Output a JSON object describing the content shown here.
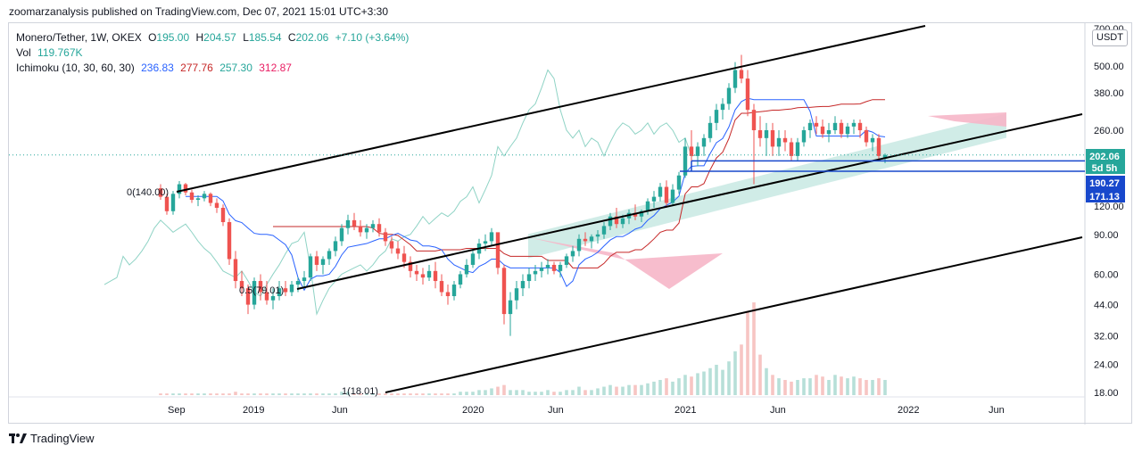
{
  "header": {
    "publisher_line": "zoomarzanalysis published on TradingView.com, Dec 07, 2021 15:01 UTC+3:30"
  },
  "legend": {
    "symbol": "Monero/Tether, 1W, OKEX",
    "o_label": "O",
    "o_value": "195.00",
    "h_label": "H",
    "h_value": "204.57",
    "l_label": "L",
    "l_value": "185.54",
    "c_label": "C",
    "c_value": "202.06",
    "change": "+7.10 (+3.64%)",
    "vol_label": "Vol",
    "vol_value": "119.767K",
    "ichimoku_label": "Ichimoku (10, 30, 60, 30)",
    "ichimoku_values": [
      "236.83",
      "277.76",
      "257.30",
      "312.87"
    ]
  },
  "colors": {
    "up": "#26a69a",
    "down": "#ef5350",
    "vol_up": "#b7dfd8",
    "vol_down": "#f7c5c3",
    "conversion": "#2962ff",
    "base": "#c62828",
    "lagging": "#8fd3c5",
    "cloud_up": "#a9dcd4",
    "cloud_down": "#f6b6c8",
    "channel": "#000000",
    "hline": "#1848cc",
    "price_tag": "#26a69a",
    "level_tag": "#1848cc"
  },
  "chart_data": {
    "type": "candlestick",
    "title": "Monero/Tether, 1W, OKEX",
    "y_scale": "log",
    "ylim": [
      16,
      700
    ],
    "x_ticks": [
      "Sep",
      "2019",
      "Jun",
      "2020",
      "Jun",
      "2021",
      "Jun",
      "2022",
      "Jun"
    ],
    "y_ticks": [
      "500.00",
      "380.00",
      "260.00",
      "120.00",
      "90.00",
      "60.00",
      "44.00",
      "32.00",
      "24.00",
      "18.00"
    ],
    "top_tick_partial": "700.00",
    "last_price": "202.06",
    "countdown": "5d 5h",
    "levels": [
      "190.27",
      "171.13"
    ],
    "annotations": [
      "0(140.00)",
      "1(18.01)",
      "0.5(79.01)"
    ],
    "ohlc_series": [
      [
        144,
        150,
        128,
        132
      ],
      [
        132,
        136,
        110,
        114
      ],
      [
        114,
        140,
        110,
        136
      ],
      [
        136,
        155,
        130,
        150
      ],
      [
        150,
        152,
        134,
        138
      ],
      [
        138,
        142,
        124,
        128
      ],
      [
        128,
        134,
        120,
        130
      ],
      [
        130,
        140,
        126,
        136
      ],
      [
        136,
        138,
        120,
        124
      ],
      [
        124,
        130,
        112,
        118
      ],
      [
        118,
        122,
        98,
        102
      ],
      [
        102,
        106,
        66,
        70
      ],
      [
        70,
        76,
        52,
        56
      ],
      [
        56,
        62,
        48,
        52
      ],
      [
        52,
        54,
        40,
        44
      ],
      [
        44,
        58,
        42,
        56
      ],
      [
        56,
        60,
        46,
        50
      ],
      [
        50,
        56,
        44,
        46
      ],
      [
        46,
        52,
        42,
        48
      ],
      [
        48,
        56,
        46,
        52
      ],
      [
        52,
        56,
        48,
        50
      ],
      [
        50,
        56,
        48,
        54
      ],
      [
        54,
        58,
        50,
        56
      ],
      [
        56,
        62,
        52,
        58
      ],
      [
        58,
        74,
        56,
        72
      ],
      [
        72,
        76,
        62,
        66
      ],
      [
        66,
        72,
        60,
        70
      ],
      [
        70,
        78,
        66,
        76
      ],
      [
        76,
        88,
        72,
        84
      ],
      [
        84,
        100,
        80,
        96
      ],
      [
        96,
        110,
        90,
        104
      ],
      [
        104,
        112,
        94,
        98
      ],
      [
        98,
        104,
        88,
        92
      ],
      [
        92,
        100,
        86,
        96
      ],
      [
        96,
        104,
        92,
        100
      ],
      [
        100,
        106,
        88,
        92
      ],
      [
        92,
        96,
        80,
        84
      ],
      [
        84,
        88,
        74,
        78
      ],
      [
        78,
        84,
        70,
        74
      ],
      [
        74,
        80,
        64,
        68
      ],
      [
        68,
        72,
        58,
        62
      ],
      [
        62,
        66,
        56,
        60
      ],
      [
        60,
        64,
        54,
        58
      ],
      [
        58,
        66,
        56,
        62
      ],
      [
        62,
        68,
        52,
        56
      ],
      [
        56,
        60,
        48,
        50
      ],
      [
        50,
        54,
        44,
        48
      ],
      [
        48,
        56,
        46,
        54
      ],
      [
        54,
        62,
        52,
        60
      ],
      [
        60,
        70,
        58,
        66
      ],
      [
        66,
        78,
        64,
        74
      ],
      [
        74,
        86,
        70,
        82
      ],
      [
        82,
        90,
        76,
        84
      ],
      [
        84,
        96,
        80,
        92
      ],
      [
        92,
        90,
        60,
        64
      ],
      [
        64,
        66,
        36,
        40
      ],
      [
        40,
        50,
        32,
        46
      ],
      [
        46,
        56,
        42,
        52
      ],
      [
        52,
        60,
        48,
        56
      ],
      [
        56,
        64,
        52,
        60
      ],
      [
        60,
        66,
        56,
        62
      ],
      [
        62,
        68,
        58,
        64
      ],
      [
        64,
        70,
        60,
        66
      ],
      [
        66,
        68,
        60,
        62
      ],
      [
        62,
        68,
        58,
        66
      ],
      [
        66,
        74,
        64,
        72
      ],
      [
        72,
        80,
        68,
        76
      ],
      [
        76,
        90,
        72,
        86
      ],
      [
        86,
        92,
        80,
        84
      ],
      [
        84,
        90,
        78,
        88
      ],
      [
        88,
        94,
        82,
        90
      ],
      [
        90,
        102,
        86,
        98
      ],
      [
        98,
        112,
        94,
        108
      ],
      [
        108,
        118,
        96,
        100
      ],
      [
        100,
        110,
        96,
        106
      ],
      [
        106,
        116,
        100,
        112
      ],
      [
        112,
        122,
        104,
        108
      ],
      [
        108,
        116,
        102,
        114
      ],
      [
        114,
        130,
        110,
        126
      ],
      [
        126,
        140,
        118,
        132
      ],
      [
        132,
        152,
        126,
        146
      ],
      [
        146,
        156,
        118,
        124
      ],
      [
        124,
        150,
        120,
        142
      ],
      [
        142,
        170,
        136,
        164
      ],
      [
        164,
        240,
        160,
        220
      ],
      [
        220,
        260,
        190,
        200
      ],
      [
        200,
        230,
        180,
        220
      ],
      [
        220,
        250,
        200,
        240
      ],
      [
        240,
        300,
        230,
        280
      ],
      [
        280,
        340,
        260,
        320
      ],
      [
        320,
        360,
        290,
        340
      ],
      [
        340,
        420,
        320,
        400
      ],
      [
        400,
        520,
        380,
        480
      ],
      [
        480,
        560,
        420,
        440
      ],
      [
        440,
        480,
        300,
        320
      ],
      [
        320,
        340,
        150,
        260
      ],
      [
        260,
        300,
        220,
        240
      ],
      [
        240,
        280,
        200,
        260
      ],
      [
        260,
        280,
        200,
        220
      ],
      [
        220,
        260,
        200,
        240
      ],
      [
        240,
        260,
        210,
        230
      ],
      [
        230,
        240,
        190,
        200
      ],
      [
        200,
        240,
        190,
        230
      ],
      [
        230,
        270,
        220,
        260
      ],
      [
        260,
        290,
        240,
        280
      ],
      [
        280,
        300,
        250,
        270
      ],
      [
        270,
        290,
        240,
        250
      ],
      [
        250,
        280,
        230,
        260
      ],
      [
        260,
        300,
        250,
        280
      ],
      [
        280,
        290,
        240,
        250
      ],
      [
        250,
        280,
        240,
        270
      ],
      [
        270,
        290,
        250,
        280
      ],
      [
        280,
        290,
        240,
        260
      ],
      [
        260,
        270,
        220,
        230
      ],
      [
        230,
        250,
        210,
        240
      ],
      [
        240,
        250,
        190,
        200
      ],
      [
        195,
        205,
        186,
        202
      ]
    ],
    "volume_series": [
      1,
      1,
      1,
      1,
      1,
      1,
      1,
      1,
      1,
      1,
      1,
      1,
      2,
      1,
      1,
      1,
      1,
      1,
      1,
      1,
      1,
      1,
      1,
      1,
      1,
      1,
      1,
      1,
      1,
      2,
      2,
      1,
      1,
      1,
      1,
      1,
      1,
      1,
      1,
      1,
      1,
      1,
      1,
      1,
      1,
      1,
      1,
      1,
      2,
      2,
      2,
      3,
      3,
      4,
      5,
      6,
      3,
      3,
      3,
      2,
      2,
      2,
      3,
      2,
      2,
      3,
      3,
      5,
      3,
      3,
      4,
      5,
      6,
      5,
      5,
      6,
      6,
      6,
      7,
      8,
      9,
      10,
      8,
      10,
      12,
      11,
      13,
      14,
      16,
      18,
      15,
      20,
      26,
      30,
      50,
      55,
      24,
      16,
      12,
      10,
      9,
      8,
      9,
      10,
      10,
      12,
      11,
      9,
      12,
      11,
      10,
      11,
      10,
      9,
      9,
      10,
      9
    ],
    "channel_lines": [
      {
        "from": [
          "2018-08",
          140
        ],
        "to": [
          "2021-12",
          700
        ]
      },
      {
        "from": [
          "2019-03",
          50
        ],
        "to": [
          "2022-10",
          300
        ]
      },
      {
        "from": [
          "2019-10",
          18.01
        ],
        "to": [
          "2022-10",
          90
        ]
      }
    ],
    "horizontal_levels": [
      190.27,
      171.13
    ]
  },
  "footer": {
    "brand": "TradingView"
  },
  "toolbar": {
    "currency": "USDT"
  }
}
